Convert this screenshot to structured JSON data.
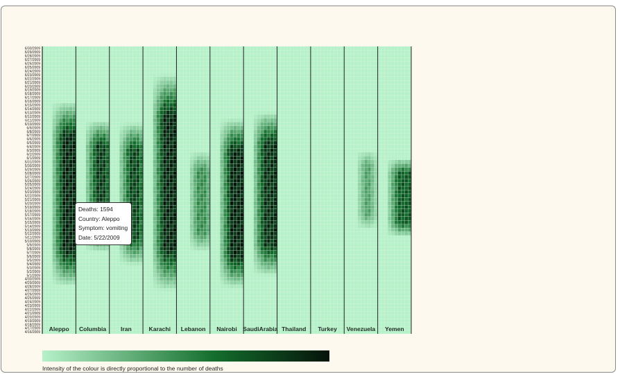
{
  "colors": {
    "low": "#b6f1c9",
    "high": "#05130a",
    "grid": "#d8f6e2",
    "divider": "#222222",
    "background": "#fef9ee"
  },
  "tooltip": {
    "deaths": "Deaths: 1594",
    "country": "Country: Aleppo",
    "symptom": "Symptom: vomiting",
    "date": "Date: 5/22/2009"
  },
  "legend": {
    "caption": "Intensity of the colour is directly proportional to the number of deaths"
  },
  "chart_data": {
    "type": "heatmap",
    "title": "",
    "xlabel": "",
    "ylabel": "",
    "categories": [
      "Aleppo",
      "Columbia",
      "Iran",
      "Karachi",
      "Lebanon",
      "Nairobi",
      "SaudiArabia",
      "Thailand",
      "Turkey",
      "Venezuela",
      "Yemen"
    ],
    "dates": [
      "6/30/2009",
      "6/29/2009",
      "6/28/2009",
      "6/27/2009",
      "6/26/2009",
      "6/25/2009",
      "6/24/2009",
      "6/23/2009",
      "6/22/2009",
      "6/21/2009",
      "6/20/2009",
      "6/19/2009",
      "6/18/2009",
      "6/17/2009",
      "6/16/2009",
      "6/15/2009",
      "6/14/2009",
      "6/13/2009",
      "6/12/2009",
      "6/11/2009",
      "6/10/2009",
      "6/9/2009",
      "6/8/2009",
      "6/7/2009",
      "6/6/2009",
      "6/5/2009",
      "6/4/2009",
      "6/3/2009",
      "6/2/2009",
      "6/1/2009",
      "5/31/2009",
      "5/30/2009",
      "5/29/2009",
      "5/28/2009",
      "5/27/2009",
      "5/26/2009",
      "5/25/2009",
      "5/24/2009",
      "5/23/2009",
      "5/22/2009",
      "5/21/2009",
      "5/20/2009",
      "5/19/2009",
      "5/18/2009",
      "5/17/2009",
      "5/16/2009",
      "5/15/2009",
      "5/14/2009",
      "5/13/2009",
      "5/12/2009",
      "5/11/2009",
      "5/10/2009",
      "5/9/2009",
      "5/8/2009",
      "5/7/2009",
      "5/6/2009",
      "5/5/2009",
      "5/4/2009",
      "5/3/2009",
      "5/2/2009",
      "5/1/2009",
      "4/30/2009",
      "4/29/2009",
      "4/28/2009",
      "4/27/2009",
      "4/26/2009",
      "4/25/2009",
      "4/24/2009",
      "4/23/2009",
      "4/22/2009",
      "4/21/2009",
      "4/20/2009",
      "4/19/2009",
      "4/18/2009",
      "4/17/2009",
      "4/16/2009"
    ],
    "sub_columns_per_category": 10,
    "intensity_range": [
      0,
      1
    ],
    "intensity_profiles": [
      {
        "category": "Aleppo",
        "peak_start_date": "6/9/2009",
        "peak_end_date": "5/5/2009",
        "peak_intensity": 1.0,
        "core_sub_columns": [
          6,
          9
        ],
        "spread": 3
      },
      {
        "category": "Columbia",
        "peak_start_date": "6/6/2009",
        "peak_end_date": "5/12/2009",
        "peak_intensity": 0.9,
        "core_sub_columns": [
          6,
          8
        ],
        "spread": 3
      },
      {
        "category": "Iran",
        "peak_start_date": "6/5/2009",
        "peak_end_date": "5/9/2009",
        "peak_intensity": 0.85,
        "core_sub_columns": [
          6,
          8
        ],
        "spread": 3
      },
      {
        "category": "Karachi",
        "peak_start_date": "6/15/2009",
        "peak_end_date": "5/5/2009",
        "peak_intensity": 1.0,
        "core_sub_columns": [
          6,
          9
        ],
        "spread": 3
      },
      {
        "category": "Lebanon",
        "peak_start_date": "5/30/2009",
        "peak_end_date": "5/11/2009",
        "peak_intensity": 0.5,
        "core_sub_columns": [
          6,
          8
        ],
        "spread": 2
      },
      {
        "category": "Nairobi",
        "peak_start_date": "6/5/2009",
        "peak_end_date": "5/4/2009",
        "peak_intensity": 1.0,
        "core_sub_columns": [
          6,
          9
        ],
        "spread": 3
      },
      {
        "category": "SaudiArabia",
        "peak_start_date": "6/7/2009",
        "peak_end_date": "5/7/2009",
        "peak_intensity": 0.95,
        "core_sub_columns": [
          6,
          9
        ],
        "spread": 3
      },
      {
        "category": "Thailand",
        "peak_start_date": "",
        "peak_end_date": "",
        "peak_intensity": 0.0,
        "core_sub_columns": [
          0,
          0
        ],
        "spread": 0
      },
      {
        "category": "Turkey",
        "peak_start_date": "",
        "peak_end_date": "",
        "peak_intensity": 0.0,
        "core_sub_columns": [
          0,
          0
        ],
        "spread": 0
      },
      {
        "category": "Venezuela",
        "peak_start_date": "5/31/2009",
        "peak_end_date": "5/16/2009",
        "peak_intensity": 0.4,
        "core_sub_columns": [
          6,
          7
        ],
        "spread": 2
      },
      {
        "category": "Yemen",
        "peak_start_date": "5/29/2009",
        "peak_end_date": "5/14/2009",
        "peak_intensity": 0.75,
        "core_sub_columns": [
          6,
          9
        ],
        "spread": 3
      }
    ]
  }
}
